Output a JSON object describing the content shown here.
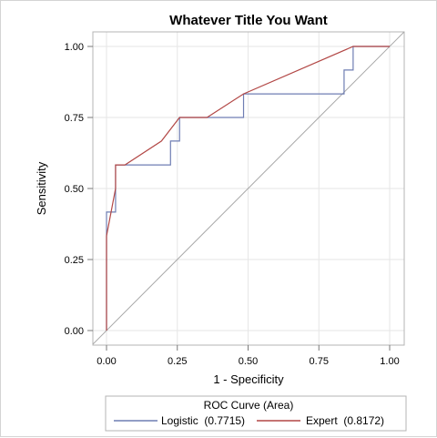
{
  "chart_data": {
    "type": "line",
    "title": "Whatever Title You Want",
    "xlabel": "1 - Specificity",
    "ylabel": "Sensitivity",
    "xlim": [
      0,
      1
    ],
    "ylim": [
      0,
      1
    ],
    "xticks": [
      "0.00",
      "0.25",
      "0.50",
      "0.75",
      "1.00"
    ],
    "yticks": [
      "0.00",
      "0.25",
      "0.50",
      "0.75",
      "1.00"
    ],
    "grid": true,
    "legend_title": "ROC Curve (Area)",
    "legend_position": "bottom",
    "reference_line": {
      "x": [
        0,
        1
      ],
      "y": [
        0,
        1
      ],
      "color": "#a6a6a6"
    },
    "series": [
      {
        "name": "Logistic  (0.7715)",
        "color": "#6f7eb3",
        "x": [
          0,
          0,
          0.032,
          0.032,
          0.226,
          0.226,
          0.258,
          0.258,
          0.484,
          0.484,
          0.839,
          0.839,
          0.871,
          0.871,
          1.0
        ],
        "y": [
          0,
          0.417,
          0.417,
          0.583,
          0.583,
          0.667,
          0.667,
          0.75,
          0.75,
          0.833,
          0.833,
          0.917,
          0.917,
          1.0,
          1.0
        ]
      },
      {
        "name": "Expert  (0.8172)",
        "color": "#b24745",
        "x": [
          0,
          0,
          0.032,
          0.032,
          0.065,
          0.194,
          0.258,
          0.355,
          0.484,
          0.871,
          1.0
        ],
        "y": [
          0,
          0.333,
          0.5,
          0.583,
          0.583,
          0.667,
          0.75,
          0.75,
          0.833,
          1.0,
          1.0
        ]
      }
    ]
  }
}
